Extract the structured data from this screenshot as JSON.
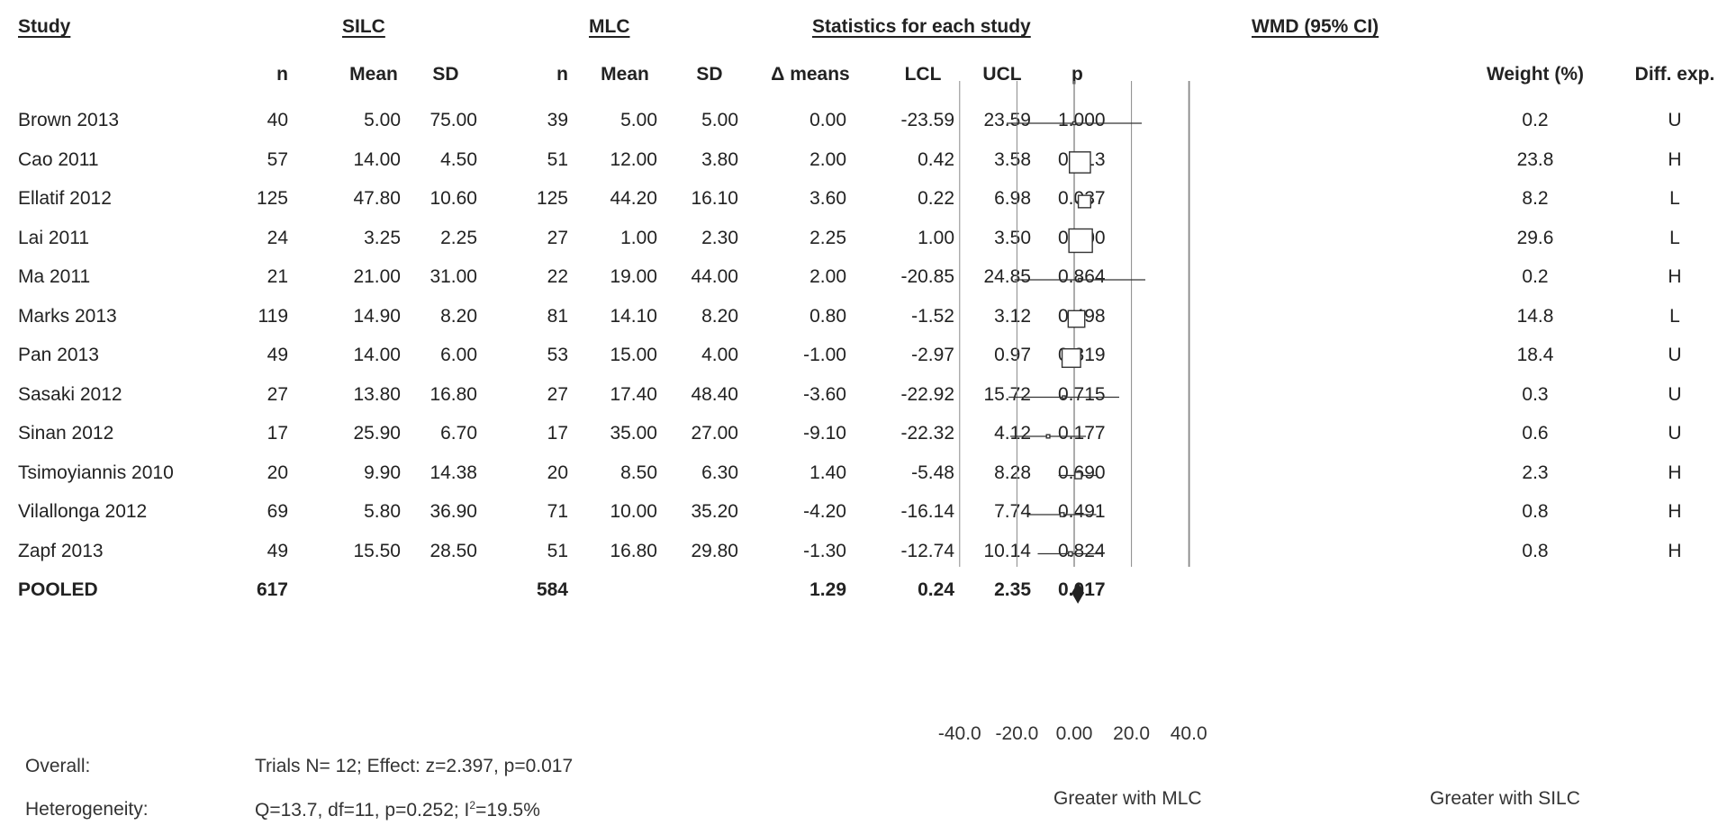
{
  "headers": {
    "study": "Study",
    "silc": "SILC",
    "mlc": "MLC",
    "stats": "Statistics for each study",
    "wmd": "WMD (95% CI)",
    "n": "n",
    "mean": "Mean",
    "sd": "SD",
    "delta": "Δ means",
    "lcl": "LCL",
    "ucl": "UCL",
    "p": "p",
    "weight": "Weight (%)",
    "diff": "Diff. exp."
  },
  "rows": [
    {
      "study": "Brown 2013",
      "n1": "40",
      "m1": "5.00",
      "sd1": "75.00",
      "n2": "39",
      "m2": "5.00",
      "sd2": "5.00",
      "dm": "0.00",
      "lcl": "-23.59",
      "ucl": "23.59",
      "p": "1.000",
      "weight": "0.2",
      "diff": "U"
    },
    {
      "study": "Cao 2011",
      "n1": "57",
      "m1": "14.00",
      "sd1": "4.50",
      "n2": "51",
      "m2": "12.00",
      "sd2": "3.80",
      "dm": "2.00",
      "lcl": "0.42",
      "ucl": "3.58",
      "p": "0.013",
      "weight": "23.8",
      "diff": "H"
    },
    {
      "study": "Ellatif 2012",
      "n1": "125",
      "m1": "47.80",
      "sd1": "10.60",
      "n2": "125",
      "m2": "44.20",
      "sd2": "16.10",
      "dm": "3.60",
      "lcl": "0.22",
      "ucl": "6.98",
      "p": "0.037",
      "weight": "8.2",
      "diff": "L"
    },
    {
      "study": "Lai 2011",
      "n1": "24",
      "m1": "3.25",
      "sd1": "2.25",
      "n2": "27",
      "m2": "1.00",
      "sd2": "2.30",
      "dm": "2.25",
      "lcl": "1.00",
      "ucl": "3.50",
      "p": "0.000",
      "weight": "29.6",
      "diff": "L"
    },
    {
      "study": "Ma 2011",
      "n1": "21",
      "m1": "21.00",
      "sd1": "31.00",
      "n2": "22",
      "m2": "19.00",
      "sd2": "44.00",
      "dm": "2.00",
      "lcl": "-20.85",
      "ucl": "24.85",
      "p": "0.864",
      "weight": "0.2",
      "diff": "H"
    },
    {
      "study": "Marks 2013",
      "n1": "119",
      "m1": "14.90",
      "sd1": "8.20",
      "n2": "81",
      "m2": "14.10",
      "sd2": "8.20",
      "dm": "0.80",
      "lcl": "-1.52",
      "ucl": "3.12",
      "p": "0.498",
      "weight": "14.8",
      "diff": "L"
    },
    {
      "study": "Pan 2013",
      "n1": "49",
      "m1": "14.00",
      "sd1": "6.00",
      "n2": "53",
      "m2": "15.00",
      "sd2": "4.00",
      "dm": "-1.00",
      "lcl": "-2.97",
      "ucl": "0.97",
      "p": "0.319",
      "weight": "18.4",
      "diff": "U"
    },
    {
      "study": "Sasaki 2012",
      "n1": "27",
      "m1": "13.80",
      "sd1": "16.80",
      "n2": "27",
      "m2": "17.40",
      "sd2": "48.40",
      "dm": "-3.60",
      "lcl": "-22.92",
      "ucl": "15.72",
      "p": "0.715",
      "weight": "0.3",
      "diff": "U"
    },
    {
      "study": "Sinan 2012",
      "n1": "17",
      "m1": "25.90",
      "sd1": "6.70",
      "n2": "17",
      "m2": "35.00",
      "sd2": "27.00",
      "dm": "-9.10",
      "lcl": "-22.32",
      "ucl": "4.12",
      "p": "0.177",
      "weight": "0.6",
      "diff": "U"
    },
    {
      "study": "Tsimoyiannis 2010",
      "n1": "20",
      "m1": "9.90",
      "sd1": "14.38",
      "n2": "20",
      "m2": "8.50",
      "sd2": "6.30",
      "dm": "1.40",
      "lcl": "-5.48",
      "ucl": "8.28",
      "p": "0.690",
      "weight": "2.3",
      "diff": "H"
    },
    {
      "study": "Vilallonga 2012",
      "n1": "69",
      "m1": "5.80",
      "sd1": "36.90",
      "n2": "71",
      "m2": "10.00",
      "sd2": "35.20",
      "dm": "-4.20",
      "lcl": "-16.14",
      "ucl": "7.74",
      "p": "0.491",
      "weight": "0.8",
      "diff": "H"
    },
    {
      "study": "Zapf 2013",
      "n1": "49",
      "m1": "15.50",
      "sd1": "28.50",
      "n2": "51",
      "m2": "16.80",
      "sd2": "29.80",
      "dm": "-1.30",
      "lcl": "-12.74",
      "ucl": "10.14",
      "p": "0.824",
      "weight": "0.8",
      "diff": "H"
    }
  ],
  "pooled": {
    "study": "POOLED",
    "n1": "617",
    "n2": "584",
    "dm": "1.29",
    "lcl": "0.24",
    "ucl": "2.35",
    "p": "0.017"
  },
  "footer": {
    "overall_label": "Overall:",
    "overall_value": "Trials N= 12; Effect: z=2.397, p=0.017",
    "het_label": "Heterogeneity:",
    "het_value_main": "Q=13.7, df=11, p=0.252; I",
    "het_value_sup": "2",
    "het_value_tail": "=19.5%"
  },
  "axis_labels": {
    "left": "Greater with MLC",
    "right": "Greater with SILC"
  },
  "chart_data": {
    "type": "forest",
    "title": "WMD (95% CI)",
    "x_ticks": [
      "-40.0",
      "-20.0",
      "0.00",
      "20.0",
      "40.0"
    ],
    "xlim": [
      -40,
      40
    ],
    "points": [
      {
        "study": "Brown 2013",
        "estimate": 0.0,
        "lcl": -23.59,
        "ucl": 23.59,
        "weight": 0.2
      },
      {
        "study": "Cao 2011",
        "estimate": 2.0,
        "lcl": 0.42,
        "ucl": 3.58,
        "weight": 23.8
      },
      {
        "study": "Ellatif 2012",
        "estimate": 3.6,
        "lcl": 0.22,
        "ucl": 6.98,
        "weight": 8.2
      },
      {
        "study": "Lai 2011",
        "estimate": 2.25,
        "lcl": 1.0,
        "ucl": 3.5,
        "weight": 29.6
      },
      {
        "study": "Ma 2011",
        "estimate": 2.0,
        "lcl": -20.85,
        "ucl": 24.85,
        "weight": 0.2
      },
      {
        "study": "Marks 2013",
        "estimate": 0.8,
        "lcl": -1.52,
        "ucl": 3.12,
        "weight": 14.8
      },
      {
        "study": "Pan 2013",
        "estimate": -1.0,
        "lcl": -2.97,
        "ucl": 0.97,
        "weight": 18.4
      },
      {
        "study": "Sasaki 2012",
        "estimate": -3.6,
        "lcl": -22.92,
        "ucl": 15.72,
        "weight": 0.3
      },
      {
        "study": "Sinan 2012",
        "estimate": -9.1,
        "lcl": -22.32,
        "ucl": 4.12,
        "weight": 0.6
      },
      {
        "study": "Tsimoyiannis 2010",
        "estimate": 1.4,
        "lcl": -5.48,
        "ucl": 8.28,
        "weight": 2.3
      },
      {
        "study": "Vilallonga 2012",
        "estimate": -4.2,
        "lcl": -16.14,
        "ucl": 7.74,
        "weight": 0.8
      },
      {
        "study": "Zapf 2013",
        "estimate": -1.3,
        "lcl": -12.74,
        "ucl": 10.14,
        "weight": 0.8
      }
    ],
    "pooled": {
      "estimate": 1.29,
      "lcl": 0.24,
      "ucl": 2.35
    },
    "colors": {
      "line": "#333333",
      "box": "#ffffff",
      "diamond": "#222222",
      "axis": "#888888"
    }
  }
}
